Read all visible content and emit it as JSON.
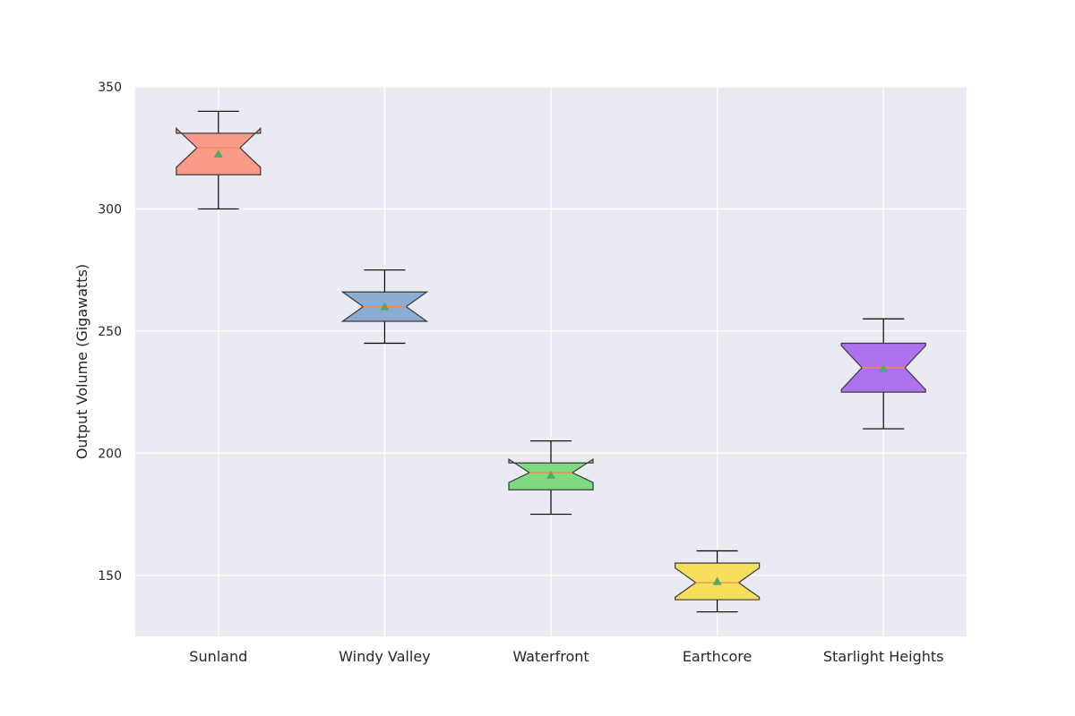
{
  "chart_data": {
    "type": "box",
    "notched": true,
    "show_means": true,
    "title": "",
    "xlabel": "",
    "ylabel": "Output Volume (Gigawatts)",
    "ylim": [
      125,
      350
    ],
    "yticks": [
      150,
      200,
      250,
      300,
      350
    ],
    "grid": true,
    "background_color": "#eaeaf2",
    "grid_color": "#ffffff",
    "median_color": "#f08a4b",
    "mean_marker_color": "#55a868",
    "categories": [
      "Sunland",
      "Windy Valley",
      "Waterfront",
      "Earthcore",
      "Starlight Heights"
    ],
    "boxes": [
      {
        "category": "Sunland",
        "whisker_low": 300,
        "q1": 314,
        "median": 325,
        "q3": 331,
        "whisker_high": 340,
        "mean": 322.5,
        "notch_low": 317,
        "notch_high": 333,
        "color": "#f8998a"
      },
      {
        "category": "Windy Valley",
        "whisker_low": 245,
        "q1": 254,
        "median": 260,
        "q3": 266,
        "whisker_high": 275,
        "mean": 260,
        "notch_low": 254,
        "notch_high": 266,
        "color": "#8aaed3"
      },
      {
        "category": "Waterfront",
        "whisker_low": 175,
        "q1": 185,
        "median": 192,
        "q3": 196,
        "whisker_high": 205,
        "mean": 191,
        "notch_low": 188,
        "notch_high": 197.5,
        "color": "#7dda7f"
      },
      {
        "category": "Earthcore",
        "whisker_low": 135,
        "q1": 140,
        "median": 147,
        "q3": 155,
        "whisker_high": 160,
        "mean": 147.5,
        "notch_low": 141,
        "notch_high": 153,
        "color": "#f6de5d"
      },
      {
        "category": "Starlight Heights",
        "whisker_low": 210,
        "q1": 225,
        "median": 235,
        "q3": 245,
        "whisker_high": 255,
        "mean": 234.5,
        "notch_low": 226,
        "notch_high": 244,
        "color": "#ad71ec"
      }
    ]
  }
}
